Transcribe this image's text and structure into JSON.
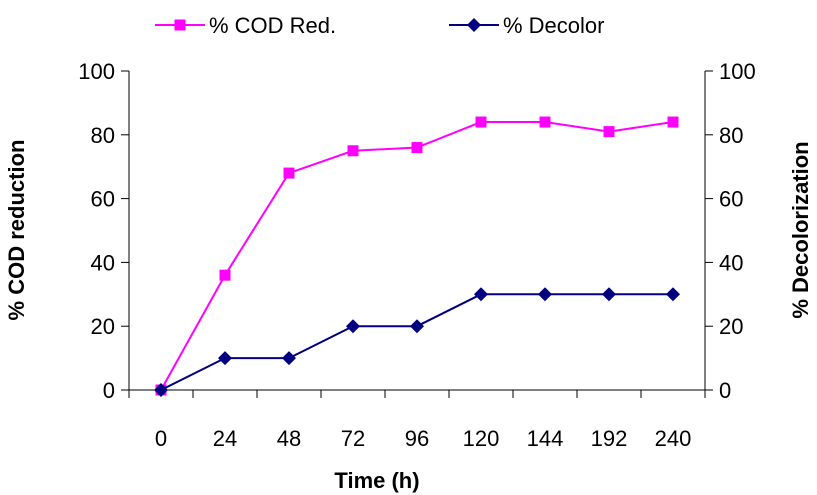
{
  "chart_data": {
    "type": "line",
    "xlabel": "Time (h)",
    "ylabel_left": "% COD reduction",
    "ylabel_right": "% Decolorization",
    "categories": [
      "0",
      "24",
      "48",
      "72",
      "96",
      "120",
      "144",
      "192",
      "240"
    ],
    "ylim": [
      0,
      100
    ],
    "yticks": [
      0,
      20,
      40,
      60,
      80,
      100
    ],
    "grid": false,
    "legend_position": "top",
    "series": [
      {
        "name": "% COD Red.",
        "values": [
          0,
          36,
          68,
          75,
          76,
          84,
          84,
          81,
          84
        ],
        "color": "#FF00FF",
        "marker": "square"
      },
      {
        "name": "% Decolor",
        "values": [
          0,
          10,
          10,
          20,
          20,
          30,
          30,
          30,
          30
        ],
        "color": "#000080",
        "marker": "diamond"
      }
    ]
  }
}
